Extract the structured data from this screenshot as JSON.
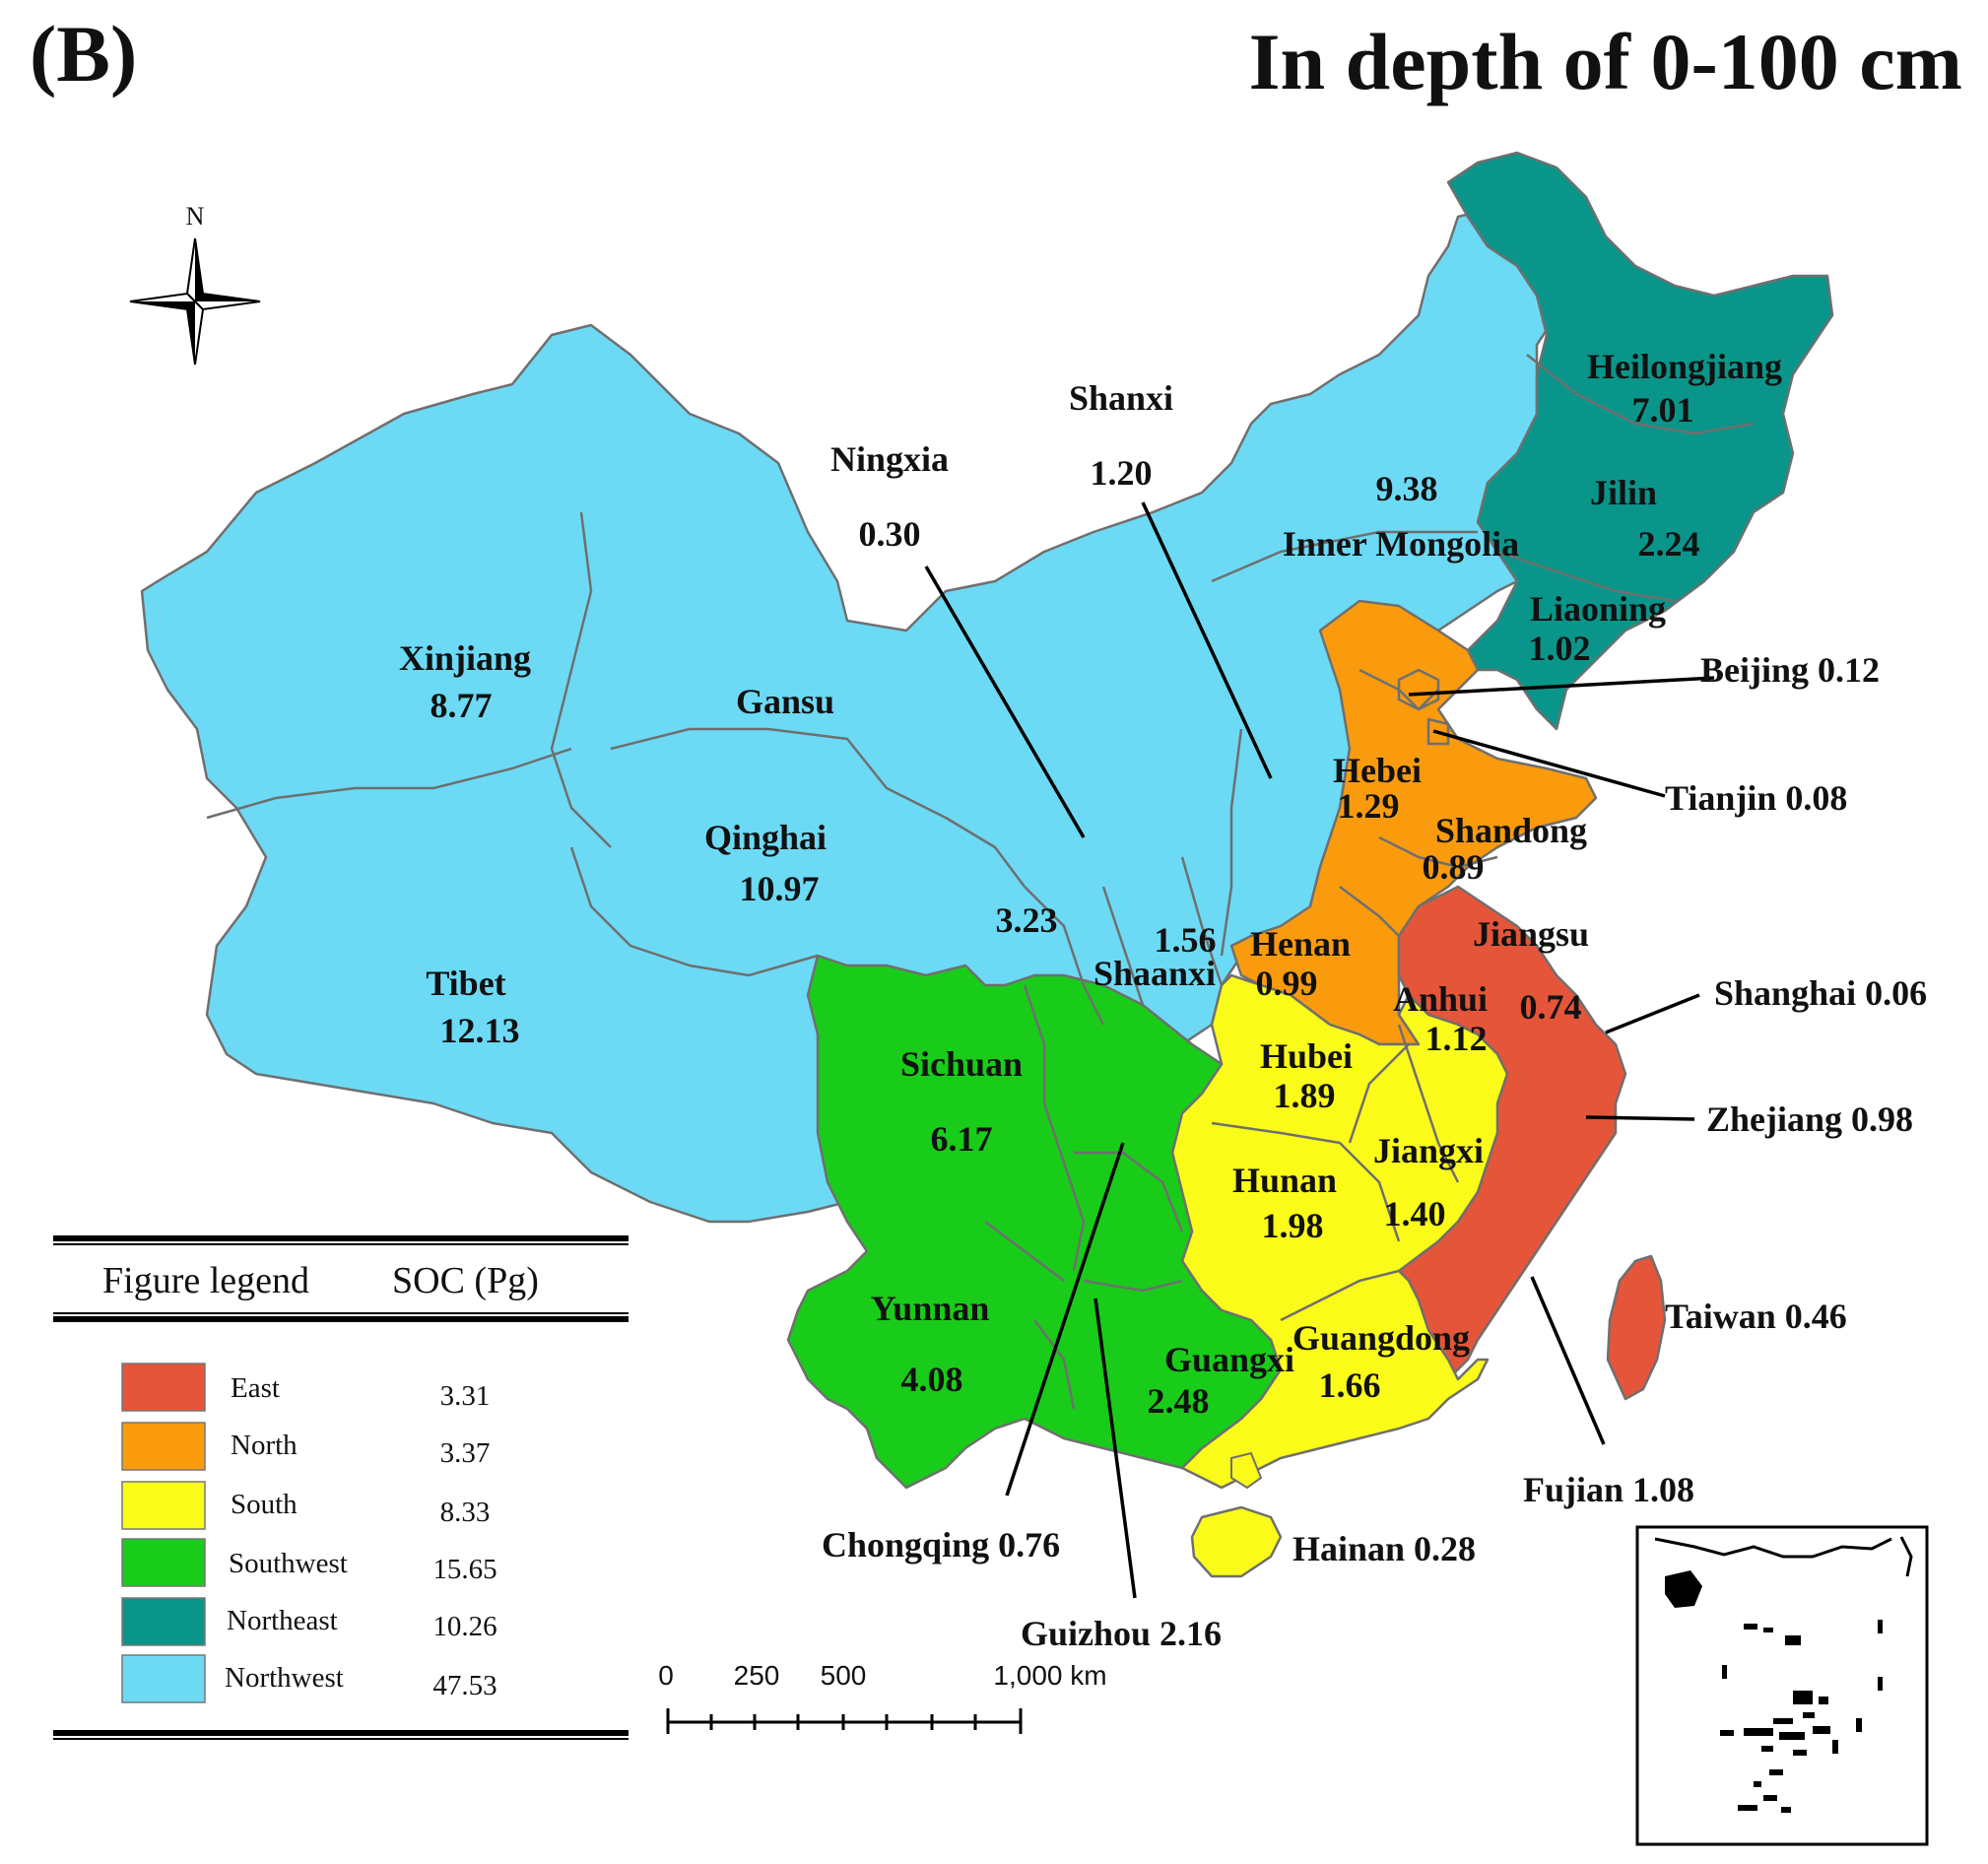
{
  "panel_label": "(B)",
  "title": "In depth of 0-100 cm",
  "compass_letter": "N",
  "colors": {
    "East": "#e4553a",
    "North": "#f99b0d",
    "South": "#fbfb1a",
    "Southwest": "#19cc19",
    "Northeast": "#0a958a",
    "Northwest": "#6cdaf5"
  },
  "provinces": [
    {
      "name": "Xinjiang",
      "value": "8.77",
      "region": "Northwest"
    },
    {
      "name": "Tibet",
      "value": "12.13",
      "region": "Northwest"
    },
    {
      "name": "Qinghai",
      "value": "10.97",
      "region": "Northwest"
    },
    {
      "name": "Gansu",
      "value": "3.23",
      "region": "Northwest"
    },
    {
      "name": "Ningxia",
      "value": "0.30",
      "region": "Northwest"
    },
    {
      "name": "Shanxi",
      "value": "1.20",
      "region": "Northwest"
    },
    {
      "name": "Inner Mongolia",
      "value": "9.38",
      "region": "Northwest"
    },
    {
      "name": "Shaanxi",
      "value": "1.56",
      "region": "Northwest"
    },
    {
      "name": "Heilongjiang",
      "value": "7.01",
      "region": "Northeast"
    },
    {
      "name": "Jilin",
      "value": "2.24",
      "region": "Northeast"
    },
    {
      "name": "Liaoning",
      "value": "1.02",
      "region": "Northeast"
    },
    {
      "name": "Beijing",
      "value": "0.12",
      "region": "North"
    },
    {
      "name": "Tianjin",
      "value": "0.08",
      "region": "North"
    },
    {
      "name": "Hebei",
      "value": "1.29",
      "region": "North"
    },
    {
      "name": "Shandong",
      "value": "0.89",
      "region": "North"
    },
    {
      "name": "Henan",
      "value": "0.99",
      "region": "North"
    },
    {
      "name": "Jiangsu",
      "value": "0.74",
      "region": "East"
    },
    {
      "name": "Shanghai",
      "value": "0.06",
      "region": "East"
    },
    {
      "name": "Zhejiang",
      "value": "0.98",
      "region": "East"
    },
    {
      "name": "Fujian",
      "value": "1.08",
      "region": "East"
    },
    {
      "name": "Taiwan",
      "value": "0.46",
      "region": "East"
    },
    {
      "name": "Anhui",
      "value": "1.12",
      "region": "South"
    },
    {
      "name": "Hubei",
      "value": "1.89",
      "region": "South"
    },
    {
      "name": "Hunan",
      "value": "1.98",
      "region": "South"
    },
    {
      "name": "Jiangxi",
      "value": "1.40",
      "region": "South"
    },
    {
      "name": "Guangdong",
      "value": "1.66",
      "region": "South"
    },
    {
      "name": "Hainan",
      "value": "0.28",
      "region": "South"
    },
    {
      "name": "Sichuan",
      "value": "6.17",
      "region": "Southwest"
    },
    {
      "name": "Yunnan",
      "value": "4.08",
      "region": "Southwest"
    },
    {
      "name": "Guangxi",
      "value": "2.48",
      "region": "Southwest"
    },
    {
      "name": "Chongqing",
      "value": "0.76",
      "region": "Southwest"
    },
    {
      "name": "Guizhou",
      "value": "2.16",
      "region": "Southwest"
    }
  ],
  "labels": {
    "xinjiang_name": "Xinjiang",
    "xinjiang_val": "8.77",
    "tibet_name": "Tibet",
    "tibet_val": "12.13",
    "qinghai_name": "Qinghai",
    "qinghai_val": "10.97",
    "gansu_name": "Gansu",
    "gansu_val": "3.23",
    "ningxia_name": "Ningxia",
    "ningxia_val": "0.30",
    "shanxi_name": "Shanxi",
    "shanxi_val": "1.20",
    "innermongolia_val": "9.38",
    "innermongolia_name": "Inner Mongolia",
    "shaanxi_val": "1.56",
    "shaanxi_name": "Shaanxi",
    "heilongjiang_name": "Heilongjiang",
    "heilongjiang_val": "7.01",
    "jilin_name": "Jilin",
    "jilin_val": "2.24",
    "liaoning_name": "Liaoning",
    "liaoning_val": "1.02",
    "beijing": "Beijing 0.12",
    "tianjin": "Tianjin 0.08",
    "hebei_name": "Hebei",
    "hebei_val": "1.29",
    "shandong_name": "Shandong",
    "shandong_val": "0.89",
    "henan_name": "Henan",
    "henan_val": "0.99",
    "jiangsu_name": "Jiangsu",
    "jiangsu_val": "0.74",
    "anhui_name": "Anhui",
    "anhui_val": "1.12",
    "shanghai": "Shanghai 0.06",
    "zhejiang": "Zhejiang 0.98",
    "hubei_name": "Hubei",
    "hubei_val": "1.89",
    "hunan_name": "Hunan",
    "hunan_val": "1.98",
    "jiangxi_name": "Jiangxi",
    "jiangxi_val": "1.40",
    "sichuan_name": "Sichuan",
    "sichuan_val": "6.17",
    "yunnan_name": "Yunnan",
    "yunnan_val": "4.08",
    "guangxi_name": "Guangxi",
    "guangxi_val": "2.48",
    "guangdong_name": "Guangdong",
    "guangdong_val": "1.66",
    "taiwan": "Taiwan 0.46",
    "fujian": "Fujian 1.08",
    "hainan": "Hainan 0.28",
    "chongqing": "Chongqing 0.76",
    "guizhou": "Guizhou 2.16"
  },
  "legend": {
    "header_left": "Figure legend",
    "header_right": "SOC (Pg)",
    "entries": [
      {
        "label": "East",
        "value": "3.31",
        "color": "#e4553a"
      },
      {
        "label": "North",
        "value": "3.37",
        "color": "#f99b0d"
      },
      {
        "label": "South",
        "value": "8.33",
        "color": "#fbfb1a"
      },
      {
        "label": "Southwest",
        "value": "15.65",
        "color": "#19cc19"
      },
      {
        "label": "Northeast",
        "value": "10.26",
        "color": "#0a958a"
      },
      {
        "label": "Northwest",
        "value": "47.53",
        "color": "#6cdaf5"
      }
    ]
  },
  "scale_bar": {
    "tick_labels": [
      "0",
      "250",
      "500",
      "1,000 km"
    ]
  }
}
